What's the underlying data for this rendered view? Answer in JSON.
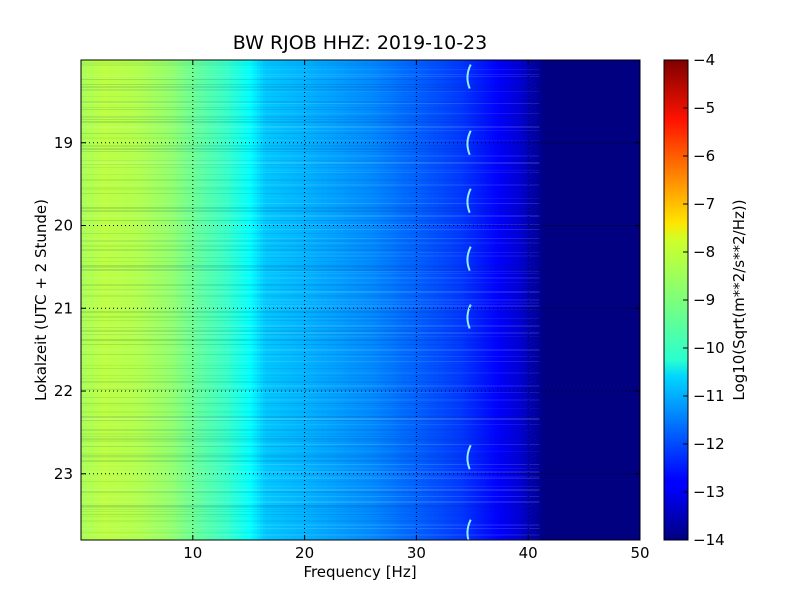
{
  "chart_data": {
    "type": "heatmap",
    "title": "BW RJOB HHZ: 2019-10-23",
    "xlabel": "Frequency [Hz]",
    "ylabel": "Lokalzeit (UTC + 2 Stunde)",
    "xlim": [
      0,
      50
    ],
    "ylim_hours": [
      18.0,
      23.8
    ],
    "y_inverted": true,
    "x_ticks": [
      10,
      20,
      30,
      40,
      50
    ],
    "x_tick_labels": [
      "10",
      "20",
      "30",
      "40",
      "50"
    ],
    "y_ticks": [
      19,
      20,
      21,
      22,
      23
    ],
    "y_tick_labels": [
      "19",
      "20",
      "21",
      "22",
      "23"
    ],
    "grid": true,
    "colormap": "jet",
    "colorbar": {
      "label": "Log10(Sqrt(m**2/s**2/Hz))",
      "range": [
        -14,
        -4
      ],
      "ticks": [
        -4,
        -5,
        -6,
        -7,
        -8,
        -9,
        -10,
        -11,
        -12,
        -13,
        -14
      ],
      "tick_labels": [
        "−4",
        "−5",
        "−6",
        "−7",
        "−8",
        "−9",
        "−10",
        "−11",
        "−12",
        "−13",
        "−14"
      ]
    },
    "spectrum_profile": {
      "frequency_hz": [
        0,
        2,
        5,
        8,
        10,
        13,
        15,
        16.5,
        20,
        23,
        26,
        30,
        34,
        37,
        39,
        40.5,
        41.5,
        45,
        50
      ],
      "log10_amplitude": [
        -8.6,
        -8.4,
        -8.5,
        -8.8,
        -9.2,
        -9.7,
        -10.2,
        -10.8,
        -11.0,
        -11.2,
        -11.4,
        -11.8,
        -12.2,
        -12.7,
        -13.1,
        -13.6,
        -14.0,
        -14.0,
        -14.0
      ]
    },
    "recurring_line_feature": {
      "frequency_hz": 34.5,
      "times_hours": [
        18.2,
        19.0,
        19.7,
        20.4,
        21.1,
        22.8,
        23.7
      ]
    }
  }
}
